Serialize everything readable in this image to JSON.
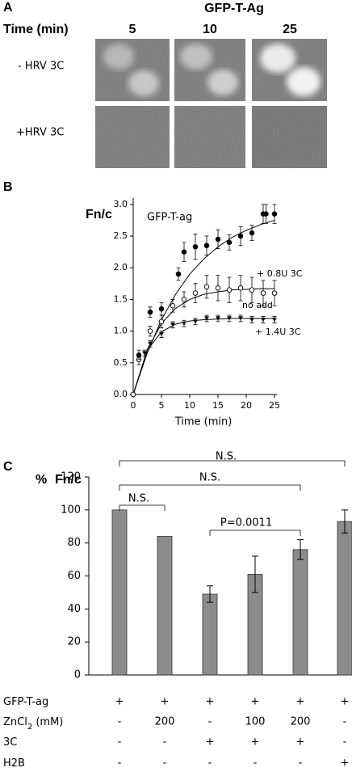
{
  "panel_a": {
    "letter": "A",
    "title": "GFP-T-Ag",
    "time_label": "Time (min)",
    "columns": [
      "5",
      "10",
      "25"
    ],
    "rows": [
      "- HRV 3C",
      "+HRV 3C"
    ]
  },
  "chart_data": [
    {
      "type": "scatter",
      "panel": "B",
      "title": "GFP-T-ag",
      "y_label": "Fn/c",
      "x_label": "Time (min)",
      "xlim": [
        0,
        25.5
      ],
      "ylim": [
        0,
        3.1
      ],
      "xticks": [
        0,
        5,
        10,
        15,
        20,
        25
      ],
      "yticks": [
        {
          "value": 0,
          "label": "0.0"
        },
        0.5,
        {
          "value": 1,
          "label": "1.0"
        },
        1.5,
        {
          "value": 2,
          "label": "2.0"
        },
        2.5,
        {
          "value": 3,
          "label": "3.0"
        }
      ],
      "series": [
        {
          "name": "no add",
          "color": "#000000",
          "marker": "circle",
          "x": [
            0,
            1,
            3,
            5,
            8,
            9,
            11,
            13,
            15,
            17,
            19,
            21,
            23,
            23.5,
            25
          ],
          "values": [
            0,
            0.62,
            1.3,
            1.35,
            1.9,
            2.25,
            2.33,
            2.35,
            2.45,
            2.4,
            2.5,
            2.55,
            2.85,
            2.85,
            2.85
          ],
          "errors": [
            0.02,
            0.08,
            0.08,
            0.1,
            0.1,
            0.15,
            0.2,
            0.15,
            0.15,
            0.12,
            0.15,
            0.12,
            0.15,
            0.15,
            0.15
          ]
        },
        {
          "name": "+ 0.8U 3C",
          "color": "#000000",
          "marker": "open-circle",
          "x": [
            0,
            1,
            3,
            5,
            7,
            9,
            11,
            13,
            15,
            17,
            19,
            21,
            23,
            25
          ],
          "values": [
            0,
            0.55,
            1.0,
            1.15,
            1.4,
            1.5,
            1.6,
            1.7,
            1.68,
            1.65,
            1.68,
            1.65,
            1.6,
            1.6
          ],
          "errors": [
            0.02,
            0.08,
            0.08,
            0.1,
            0.1,
            0.12,
            0.15,
            0.18,
            0.2,
            0.2,
            0.2,
            0.2,
            0.2,
            0.2
          ]
        },
        {
          "name": "+ 1.4U 3C",
          "color": "#000000",
          "marker": "triangle",
          "x": [
            1,
            2,
            3,
            5,
            7,
            9,
            11,
            13,
            15,
            17,
            19,
            21,
            23,
            25
          ],
          "values": [
            0.6,
            0.65,
            0.8,
            0.95,
            1.1,
            1.12,
            1.15,
            1.2,
            1.2,
            1.2,
            1.2,
            1.18,
            1.18,
            1.18
          ],
          "errors": [
            0.05,
            0.05,
            0.05,
            0.05,
            0.05,
            0.05,
            0.05,
            0.05,
            0.05,
            0.05,
            0.05,
            0.05,
            0.05,
            0.05
          ]
        }
      ],
      "fits": [
        {
          "x": [
            0,
            2.5,
            5,
            7.5,
            10,
            12.5,
            15,
            17.5,
            20,
            22.5,
            25
          ],
          "values": [
            0,
            0.66,
            1.18,
            1.58,
            1.9,
            2.14,
            2.33,
            2.48,
            2.59,
            2.68,
            2.75
          ]
        },
        {
          "x": [
            0,
            2.5,
            5,
            7.5,
            10,
            12.5,
            15,
            17.5,
            20,
            22.5,
            25
          ],
          "values": [
            0,
            0.71,
            1.12,
            1.36,
            1.5,
            1.58,
            1.62,
            1.65,
            1.66,
            1.67,
            1.67
          ]
        },
        {
          "x": [
            0,
            2.5,
            5,
            7.5,
            10,
            12.5,
            15,
            17.5,
            20,
            22.5,
            25
          ],
          "values": [
            0,
            0.7,
            0.99,
            1.11,
            1.16,
            1.18,
            1.19,
            1.2,
            1.2,
            1.2,
            1.2
          ]
        }
      ]
    },
    {
      "type": "bar",
      "panel": "C",
      "y_label_unit": "%",
      "y_label": "Fn/c",
      "categories": [
        null,
        null,
        null,
        null,
        null,
        null
      ],
      "values": [
        100,
        84,
        49,
        61,
        76,
        93
      ],
      "errors": [
        0,
        0,
        5,
        11,
        6,
        7
      ],
      "color": "#8c8c8c",
      "ylim": [
        0,
        120
      ],
      "yticks": [
        0,
        20,
        40,
        60,
        80,
        100,
        120
      ],
      "comparisons": [
        "N.S.",
        "N.S.",
        "N.S.",
        "P=0.0011"
      ],
      "conditions": [
        {
          "label": [
            "GFP-T-ag"
          ],
          "cells": [
            "+",
            "+",
            "+",
            "+",
            "+",
            "+"
          ]
        },
        {
          "label": [
            "ZnCl",
            "2",
            " (mM)"
          ],
          "cells": [
            "-",
            "200",
            "-",
            "100",
            "200",
            "-"
          ]
        },
        {
          "label": [
            "3C"
          ],
          "cells": [
            "-",
            "-",
            "+",
            "+",
            "+",
            "-"
          ]
        },
        {
          "label": [
            "H2B"
          ],
          "cells": [
            "-",
            "-",
            "-",
            "-",
            "-",
            "+"
          ]
        }
      ]
    }
  ]
}
